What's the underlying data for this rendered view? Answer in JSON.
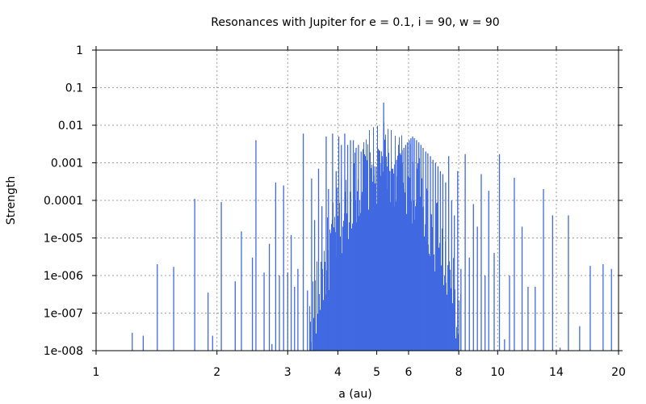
{
  "chart_data": {
    "type": "bar",
    "title": "Resonances with Jupiter for e = 0.1, i = 90, w = 90",
    "xlabel": "a (au)",
    "ylabel": "Strength",
    "x_scale": "log",
    "y_scale": "log",
    "xlim": [
      1,
      20
    ],
    "ylim": [
      1e-08,
      1
    ],
    "grid": true,
    "bar_color": "#4169e1",
    "x_ticks": [
      1,
      2,
      3,
      4,
      5,
      6,
      8,
      10,
      14,
      20
    ],
    "x_tick_labels": [
      "1",
      "2",
      "3",
      "4",
      "5",
      "6",
      "8",
      "10",
      "14",
      "20"
    ],
    "y_ticks": [
      1e-08,
      1e-07,
      1e-06,
      1e-05,
      0.0001,
      0.001,
      0.01,
      0.1,
      1
    ],
    "y_tick_labels": [
      "1e-008",
      "1e-007",
      "1e-006",
      "1e-005",
      "0.0001",
      "0.001",
      "0.01",
      "0.1",
      "1"
    ],
    "resonances": {
      "a": [
        1.23,
        1.31,
        1.42,
        1.56,
        1.76,
        1.9,
        1.95,
        2.05,
        2.22,
        2.3,
        2.45,
        2.5,
        2.62,
        2.7,
        2.74,
        2.8,
        2.86,
        2.93,
        3.0,
        3.06,
        3.12,
        3.18,
        3.28,
        3.36,
        3.44,
        3.5,
        3.58,
        3.65,
        3.74,
        3.79,
        3.88,
        3.96,
        4.02,
        4.08,
        4.16,
        4.23,
        4.3,
        4.37,
        4.44,
        4.5,
        4.57,
        4.62,
        4.68,
        4.74,
        4.8,
        4.86,
        4.92,
        4.98,
        5.04,
        5.1,
        5.16,
        5.2,
        5.24,
        5.3,
        5.36,
        5.42,
        5.48,
        5.54,
        5.6,
        5.66,
        5.72,
        5.78,
        5.84,
        5.9,
        5.96,
        6.02,
        6.08,
        6.14,
        6.2,
        6.28,
        6.36,
        6.44,
        6.52,
        6.62,
        6.7,
        6.8,
        6.9,
        7.0,
        7.1,
        7.2,
        7.3,
        7.42,
        7.55,
        7.68,
        7.8,
        7.95,
        8.1,
        8.3,
        8.5,
        8.7,
        8.9,
        9.1,
        9.3,
        9.5,
        9.8,
        10.1,
        10.4,
        10.7,
        11.0,
        11.5,
        11.9,
        12.4,
        13.0,
        13.7,
        14.3,
        15.0,
        16.0,
        17.0,
        18.3,
        19.2
      ],
      "strength": [
        3e-08,
        2.5e-08,
        2e-06,
        1.7e-06,
        0.00011,
        3.5e-07,
        2.5e-08,
        9e-05,
        7e-07,
        1.5e-05,
        3e-06,
        0.004,
        1.2e-06,
        7e-06,
        1.5e-08,
        0.0003,
        1e-06,
        0.00025,
        1.2e-06,
        1.2e-05,
        5e-07,
        1.5e-06,
        0.006,
        4e-07,
        0.00038,
        3e-05,
        0.0007,
        7e-05,
        0.005,
        0.0002,
        0.006,
        0.0006,
        0.005,
        0.003,
        0.006,
        0.003,
        0.004,
        0.004,
        0.0025,
        0.003,
        0.002,
        0.0018,
        0.0015,
        0.0012,
        0.001,
        0.0009,
        0.0008,
        0.0008,
        0.0007,
        0.001,
        0.0015,
        0.04,
        0.0012,
        0.0008,
        0.0006,
        0.0006,
        0.0007,
        0.0009,
        0.0012,
        0.0015,
        0.0018,
        0.0022,
        0.0025,
        0.003,
        0.0035,
        0.004,
        0.0045,
        0.005,
        0.0045,
        0.004,
        0.0035,
        0.003,
        0.0025,
        0.002,
        0.0018,
        0.0015,
        0.0012,
        0.001,
        0.0008,
        0.0006,
        0.0005,
        0.0003,
        0.0015,
        0.0001,
        4e-05,
        0.0006,
        1.5e-06,
        0.0017,
        3e-06,
        8e-05,
        2e-05,
        0.0005,
        1e-06,
        0.00018,
        4e-06,
        0.0017,
        2e-08,
        1e-06,
        0.0004,
        2e-05,
        5e-07,
        5e-07,
        0.0002,
        4e-05,
        1.2e-08,
        4e-05,
        4.5e-08,
        1.8e-06,
        2e-06,
        1.5e-06
      ]
    }
  }
}
